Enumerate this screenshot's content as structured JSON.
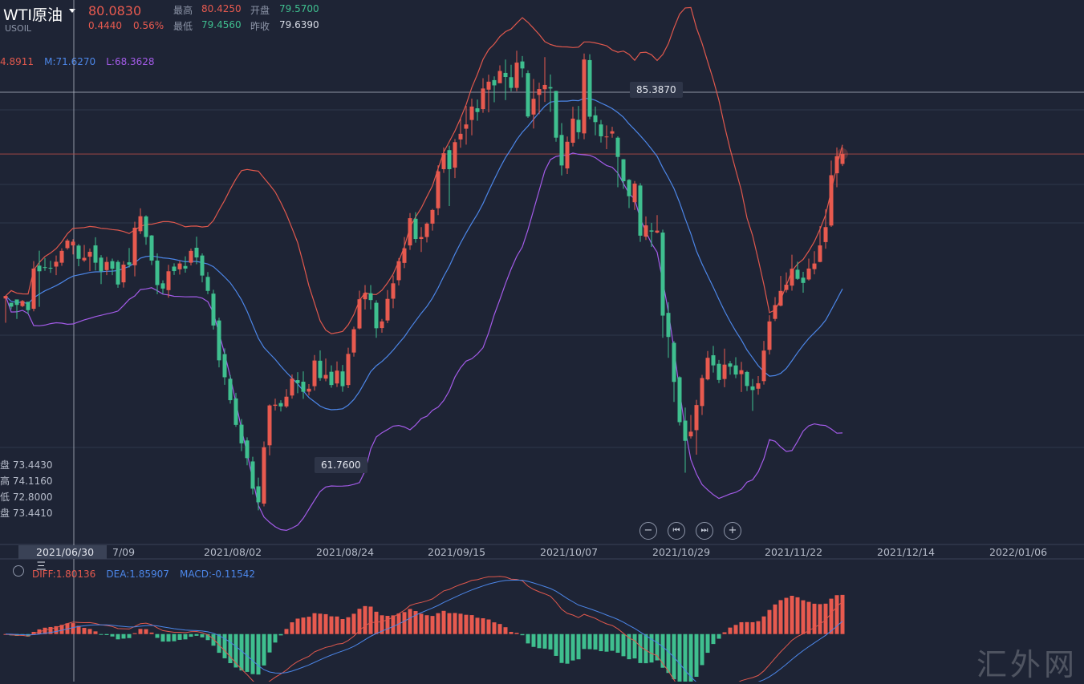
{
  "header": {
    "symbol_name": "WTI原油",
    "symbol_code": "USOIL",
    "last_price": "80.0830",
    "change": "0.4440",
    "change_pct": "0.56%",
    "high_label": "最高",
    "high_value": "80.4250",
    "open_label": "开盘",
    "open_value": "79.5700",
    "low_label": "最低",
    "low_value": "79.4560",
    "prev_close_label": "昨收",
    "prev_close_value": "79.6390"
  },
  "boll_legend": {
    "upper": "4.8911",
    "mid": "M:71.6270",
    "lower": "L:68.3628"
  },
  "cursor_ohlc": [
    {
      "label": "盘",
      "value": "73.4430"
    },
    {
      "label": "高",
      "value": "74.1160"
    },
    {
      "label": "低",
      "value": "72.8000"
    },
    {
      "label": "盘",
      "value": "73.4410"
    }
  ],
  "annotations": {
    "max_label": "85.3870",
    "min_label": "61.7600"
  },
  "cursor_date": "2021/06/30 三",
  "date_ticks": [
    "7/09",
    "2021/08/02",
    "2021/08/24",
    "2021/09/15",
    "2021/10/07",
    "2021/10/29",
    "2021/11/22",
    "2021/12/14",
    "2022/01/06"
  ],
  "controls": [
    {
      "name": "zoom-out",
      "glyph": "−"
    },
    {
      "name": "prev",
      "glyph": "⏮"
    },
    {
      "name": "next",
      "glyph": "⏭"
    },
    {
      "name": "zoom-in",
      "glyph": "+"
    }
  ],
  "macd_legend": {
    "diff": "DIFF:1.80136",
    "dea": "DEA:1.85907",
    "macd": "MACD:-0.11542"
  },
  "watermark": "汇外网",
  "colors": {
    "up": "#e85a4f",
    "down": "#3fbf8f",
    "boll_upper": "#e0584d",
    "boll_mid": "#4c86e8",
    "boll_lower": "#a35be8",
    "diff": "#e0584d",
    "dea": "#4c86e8"
  },
  "chart_data": {
    "type": "candlestick",
    "price_range": [
      60.0,
      88.0
    ],
    "candles": [
      [
        72.65,
        72.78,
        72.8,
        71.4
      ],
      [
        72.43,
        72.23,
        72.35,
        72.1
      ],
      [
        72.6,
        72.32,
        72.4,
        71.6
      ],
      [
        72.26,
        72.52,
        72.57,
        72.2
      ],
      [
        72.48,
        72.05,
        72.3,
        71.85
      ],
      [
        72.12,
        74.19,
        74.57,
        71.99
      ],
      [
        74.34,
        74.05,
        75.11,
        72.22
      ],
      [
        74.26,
        74.22,
        74.73,
        74.07
      ],
      [
        74.23,
        74.2,
        74.59,
        73.97
      ],
      [
        74.29,
        74.54,
        74.86,
        73.85
      ],
      [
        74.49,
        75.1,
        75.23,
        74.33
      ],
      [
        75.24,
        75.63,
        75.72,
        75.16
      ],
      [
        75.38,
        75.57,
        75.7,
        74.92
      ],
      [
        75.37,
        74.69,
        75.45,
        74.31
      ],
      [
        74.61,
        74.74,
        75.4,
        74.53
      ],
      [
        74.8,
        75.05,
        75.22,
        74.06
      ],
      [
        75.38,
        74.49,
        75.8,
        74.09
      ],
      [
        74.75,
        74.05,
        74.88,
        73.39
      ],
      [
        74.11,
        74.53,
        74.79,
        73.85
      ],
      [
        74.57,
        74.18,
        74.7,
        73.85
      ],
      [
        74.53,
        73.37,
        74.62,
        73.2
      ],
      [
        73.48,
        74.39,
        74.57,
        73.21
      ],
      [
        74.51,
        74.38,
        75.25,
        74.24
      ],
      [
        74.36,
        76.29,
        76.6,
        73.79
      ],
      [
        76.11,
        76.88,
        77.29,
        75.97
      ],
      [
        76.87,
        75.81,
        76.93,
        75.41
      ],
      [
        75.89,
        74.6,
        75.91,
        74.37
      ],
      [
        74.6,
        73.34,
        74.97,
        72.87
      ],
      [
        73.43,
        73.16,
        73.58,
        72.89
      ],
      [
        73.08,
        74.05,
        74.38,
        72.69
      ],
      [
        74.29,
        74.06,
        74.46,
        73.86
      ],
      [
        74.15,
        74.45,
        74.59,
        73.88
      ],
      [
        74.32,
        74.19,
        74.82,
        73.98
      ],
      [
        74.49,
        75.1,
        75.22,
        74.35
      ],
      [
        75.26,
        74.76,
        75.83,
        74.41
      ],
      [
        74.86,
        73.83,
        74.97,
        73.48
      ],
      [
        73.76,
        73.04,
        74.01,
        72.87
      ],
      [
        72.9,
        71.26,
        73.1,
        71.05
      ],
      [
        71.52,
        69.47,
        71.66,
        69.11
      ],
      [
        69.79,
        68.6,
        70.09,
        68.21
      ],
      [
        68.52,
        67.42,
        68.71,
        67.24
      ],
      [
        67.51,
        66.15,
        67.8,
        66.05
      ],
      [
        66.16,
        65.2,
        66.45,
        64.8
      ],
      [
        65.35,
        64.44,
        65.51,
        64.07
      ],
      [
        64.27,
        62.87,
        64.51,
        62.57
      ],
      [
        62.99,
        62.17,
        63.44,
        61.76
      ],
      [
        62.1,
        65.0,
        65.3,
        61.96
      ],
      [
        65.1,
        67.15,
        67.2,
        64.58
      ],
      [
        67.13,
        67.19,
        67.5,
        66.89
      ],
      [
        67.27,
        67.1,
        67.42,
        66.84
      ],
      [
        67.1,
        67.6,
        67.99,
        67.02
      ],
      [
        67.66,
        68.53,
        68.74,
        67.5
      ],
      [
        68.45,
        68.3,
        68.86,
        67.78
      ],
      [
        68.37,
        67.85,
        68.9,
        67.49
      ],
      [
        67.86,
        68.01,
        68.25,
        67.66
      ],
      [
        68.14,
        69.46,
        69.74,
        67.91
      ],
      [
        69.45,
        68.56,
        69.98,
        68.42
      ],
      [
        68.53,
        68.72,
        69.56,
        68.39
      ],
      [
        68.88,
        68.2,
        69.21,
        68.06
      ],
      [
        68.28,
        68.94,
        69.41,
        68.1
      ],
      [
        68.9,
        68.14,
        69.23,
        67.85
      ],
      [
        68.2,
        69.8,
        70.12,
        68.04
      ],
      [
        69.87,
        71.07,
        71.2,
        69.66
      ],
      [
        71.11,
        72.61,
        73.05,
        71.06
      ],
      [
        72.61,
        72.93,
        73.34,
        72.08
      ],
      [
        72.92,
        72.57,
        73.34,
        72.09
      ],
      [
        72.43,
        71.12,
        72.56,
        70.63
      ],
      [
        71.13,
        71.47,
        71.6,
        70.89
      ],
      [
        71.52,
        72.63,
        73.08,
        71.38
      ],
      [
        72.64,
        73.43,
        73.83,
        72.15
      ],
      [
        73.59,
        74.57,
        74.73,
        73.32
      ],
      [
        74.48,
        75.23,
        75.81,
        74.21
      ],
      [
        75.38,
        76.78,
        77.04,
        75.15
      ],
      [
        76.75,
        75.71,
        77.09,
        75.52
      ],
      [
        75.71,
        75.81,
        76.32,
        75.04
      ],
      [
        75.81,
        76.5,
        76.56,
        75.53
      ],
      [
        76.5,
        77.2,
        77.26,
        76.14
      ],
      [
        77.29,
        79.19,
        79.5,
        76.94
      ],
      [
        79.3,
        80.12,
        80.42,
        79.11
      ],
      [
        80.28,
        79.3,
        80.51,
        77.4
      ],
      [
        79.38,
        80.69,
        80.85,
        78.84
      ],
      [
        80.83,
        81.12,
        81.92,
        80.4
      ],
      [
        81.38,
        81.6,
        82.55,
        80.56
      ],
      [
        81.83,
        82.52,
        82.93,
        81.04
      ],
      [
        82.43,
        82.24,
        82.88,
        81.79
      ],
      [
        82.39,
        83.45,
        83.98,
        82.2
      ],
      [
        83.39,
        83.8,
        84.16,
        82.22
      ],
      [
        83.88,
        83.61,
        84.07,
        82.74
      ],
      [
        83.72,
        84.35,
        84.64,
        83.82
      ],
      [
        84.25,
        84.04,
        84.94,
        82.85
      ],
      [
        84.03,
        83.48,
        84.67,
        83.3
      ],
      [
        83.48,
        84.78,
        85.39,
        83.31
      ],
      [
        84.84,
        84.48,
        85.12,
        84.02
      ],
      [
        84.24,
        82.01,
        84.38,
        81.94
      ],
      [
        82.11,
        82.92,
        83.94,
        81.39
      ],
      [
        83.12,
        83.42,
        83.75,
        82.13
      ],
      [
        83.41,
        83.63,
        85.06,
        82.76
      ],
      [
        83.52,
        83.45,
        84.17,
        82.25
      ],
      [
        83.32,
        80.92,
        83.33,
        80.71
      ],
      [
        81.06,
        79.49,
        81.67,
        78.98
      ],
      [
        79.34,
        80.71,
        80.98,
        79.05
      ],
      [
        80.66,
        81.9,
        82.51,
        80.47
      ],
      [
        81.84,
        81.2,
        82.55,
        80.85
      ],
      [
        81.14,
        84.94,
        85.25,
        80.84
      ],
      [
        84.91,
        82.0,
        85.21,
        81.87
      ],
      [
        82.07,
        81.72,
        82.52,
        81.04
      ],
      [
        81.6,
        80.99,
        81.83,
        80.67
      ],
      [
        80.98,
        80.98,
        81.55,
        80.33
      ],
      [
        81.13,
        81.25,
        81.48,
        80.92
      ],
      [
        80.92,
        79.93,
        80.99,
        78.37
      ],
      [
        79.81,
        78.68,
        79.82,
        78.29
      ],
      [
        78.75,
        77.91,
        78.79,
        77.3
      ],
      [
        77.6,
        78.56,
        78.69,
        77.2
      ],
      [
        78.46,
        75.88,
        78.58,
        75.56
      ],
      [
        75.83,
        76.41,
        76.87,
        75.66
      ],
      [
        76.15,
        76.09,
        76.54,
        75.3
      ],
      [
        76.04,
        76.14,
        76.94,
        76.0
      ],
      [
        76.04,
        71.77,
        76.19,
        70.63
      ],
      [
        71.91,
        70.67,
        72.46,
        69.6
      ],
      [
        70.37,
        68.36,
        70.46,
        67.33
      ],
      [
        68.6,
        66.29,
        68.65,
        66.12
      ],
      [
        66.37,
        65.33,
        67.04,
        63.69
      ],
      [
        65.56,
        65.8,
        66.66,
        65.45
      ],
      [
        65.88,
        67.17,
        67.44,
        64.62
      ],
      [
        67.12,
        68.56,
        68.72,
        66.66
      ],
      [
        68.49,
        69.6,
        69.95,
        68.44
      ],
      [
        69.73,
        69.21,
        70.21,
        68.84
      ],
      [
        69.29,
        68.46,
        69.49,
        68.3
      ],
      [
        68.51,
        69.25,
        70.07,
        68.09
      ],
      [
        69.31,
        69.14,
        69.44,
        68.73
      ],
      [
        69.21,
        68.74,
        69.63,
        68.55
      ],
      [
        68.76,
        68.96,
        69.39,
        67.84
      ],
      [
        68.87,
        68.15,
        68.93,
        67.89
      ],
      [
        68.13,
        67.94,
        68.51,
        66.87
      ],
      [
        68.01,
        68.29,
        68.66,
        67.7
      ],
      [
        68.4,
        69.97,
        70.47,
        68.22
      ],
      [
        70.01,
        71.47,
        71.79,
        69.77
      ],
      [
        71.6,
        72.31,
        72.72,
        71.49
      ],
      [
        72.28,
        73.04,
        73.81,
        72.24
      ],
      [
        73.09,
        73.36,
        73.99,
        72.96
      ],
      [
        73.31,
        74.18,
        74.9,
        73.05
      ],
      [
        74.13,
        73.66,
        74.54,
        73.61
      ],
      [
        73.72,
        73.45,
        74.02,
        72.95
      ],
      [
        73.63,
        74.19,
        74.7,
        73.57
      ],
      [
        74.16,
        74.45,
        75.08,
        73.89
      ],
      [
        74.53,
        75.38,
        76.37,
        74.51
      ],
      [
        75.55,
        76.32,
        77.24,
        75.21
      ],
      [
        76.4,
        78.99,
        79.74,
        76.33
      ],
      [
        79.09,
        79.97,
        80.42,
        78.37
      ],
      [
        79.57,
        80.08,
        80.43,
        79.46
      ]
    ],
    "annotations": {
      "max": 85.387,
      "min": 61.76
    },
    "macd_range": [
      -2.5,
      3.0
    ]
  }
}
